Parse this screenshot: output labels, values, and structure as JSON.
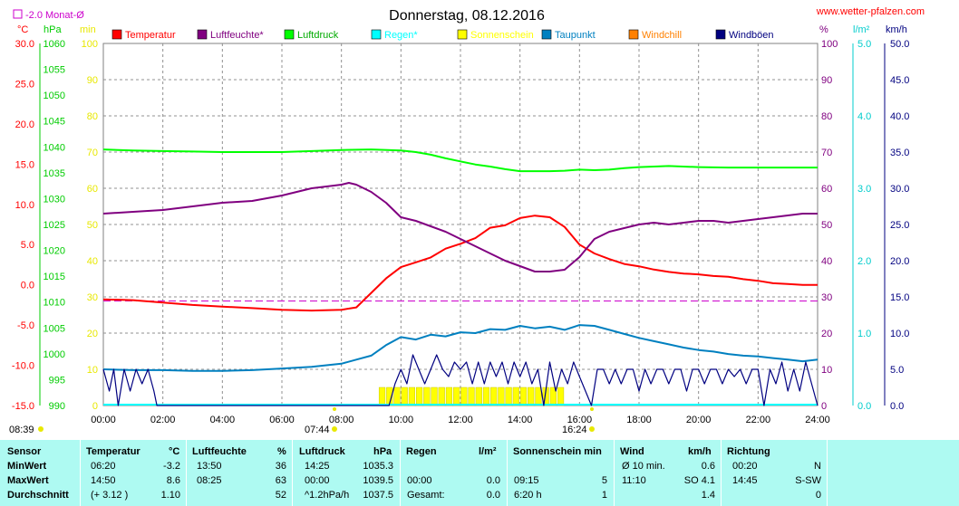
{
  "chart_data": {
    "type": "line",
    "title": "Donnerstag, 08.12.2016",
    "site": "www.wetter-pfalzen.com",
    "monthly_avg_label": "-2.0 Monat-Ø",
    "x_ticks": [
      "00:00",
      "02:00",
      "04:00",
      "06:00",
      "08:00",
      "10:00",
      "12:00",
      "14:00",
      "16:00",
      "18:00",
      "20:00",
      "22:00",
      "24:00"
    ],
    "sunrise": "07:44",
    "sunset": "16:24",
    "sun_marker_left": "08:39",
    "axes": {
      "temp": {
        "unit": "°C",
        "min": -15,
        "max": 30,
        "ticks": [
          "30.0",
          "25.0",
          "20.0",
          "15.0",
          "10.0",
          "5.0",
          "0.0",
          "-5.0",
          "-10.0",
          "-15.0"
        ],
        "color": "#ff0000"
      },
      "hpa": {
        "unit": "hPa",
        "min": 990,
        "max": 1060,
        "ticks": [
          "1060",
          "1055",
          "1050",
          "1045",
          "1040",
          "1035",
          "1030",
          "1025",
          "1020",
          "1015",
          "1010",
          "1005",
          "1000",
          "995",
          "990"
        ],
        "color": "#00cc00"
      },
      "min": {
        "unit": "min",
        "min": 0,
        "max": 100,
        "ticks": [
          "100",
          "90",
          "80",
          "70",
          "60",
          "50",
          "40",
          "30",
          "20",
          "10",
          "0"
        ],
        "color": "#e8e800"
      },
      "pct": {
        "unit": "%",
        "min": 0,
        "max": 100,
        "ticks": [
          "100",
          "90",
          "80",
          "70",
          "60",
          "50",
          "40",
          "30",
          "20",
          "10",
          "0"
        ],
        "color": "#800080"
      },
      "rain": {
        "unit": "l/m²",
        "min": 0,
        "max": 5,
        "ticks": [
          "5.0",
          "4.0",
          "3.0",
          "2.0",
          "1.0",
          "0.0"
        ],
        "color": "#00cccc"
      },
      "wind": {
        "unit": "km/h",
        "min": 0,
        "max": 50,
        "ticks": [
          "50.0",
          "45.0",
          "40.0",
          "35.0",
          "30.0",
          "25.0",
          "20.0",
          "15.0",
          "10.0",
          "5.0",
          "0.0"
        ],
        "color": "#000080"
      }
    },
    "legend": [
      {
        "name": "Temperatur",
        "color": "#ff0000"
      },
      {
        "name": "Luftfeuchte*",
        "color": "#800080"
      },
      {
        "name": "Luftdruck",
        "color": "#00ff00"
      },
      {
        "name": "Regen*",
        "color": "#00ffff"
      },
      {
        "name": "Sonnenschein",
        "color": "#ffff00"
      },
      {
        "name": "Taupunkt",
        "color": "#0080c0"
      },
      {
        "name": "Windchill",
        "color": "#ff8000"
      },
      {
        "name": "Windböen",
        "color": "#000080"
      }
    ],
    "monthly_avg_temp": -2.0,
    "series": [
      {
        "name": "Temperatur",
        "axis": "temp",
        "color": "#ff0000",
        "points": [
          [
            0,
            -1.8
          ],
          [
            1,
            -1.9
          ],
          [
            2,
            -2.2
          ],
          [
            3,
            -2.5
          ],
          [
            4,
            -2.7
          ],
          [
            5,
            -2.9
          ],
          [
            6,
            -3.1
          ],
          [
            7,
            -3.2
          ],
          [
            8,
            -3.1
          ],
          [
            8.5,
            -2.8
          ],
          [
            9,
            -1.0
          ],
          [
            9.5,
            0.8
          ],
          [
            10,
            2.2
          ],
          [
            10.5,
            2.8
          ],
          [
            11,
            3.4
          ],
          [
            11.5,
            4.5
          ],
          [
            12,
            5.1
          ],
          [
            12.5,
            5.8
          ],
          [
            13,
            7.1
          ],
          [
            13.5,
            7.4
          ],
          [
            14,
            8.3
          ],
          [
            14.5,
            8.6
          ],
          [
            15,
            8.4
          ],
          [
            15.5,
            7.2
          ],
          [
            16,
            5.0
          ],
          [
            16.5,
            3.9
          ],
          [
            17,
            3.2
          ],
          [
            17.5,
            2.6
          ],
          [
            18,
            2.3
          ],
          [
            18.5,
            1.9
          ],
          [
            19,
            1.6
          ],
          [
            19.5,
            1.4
          ],
          [
            20,
            1.3
          ],
          [
            20.5,
            1.1
          ],
          [
            21,
            1.0
          ],
          [
            21.5,
            0.7
          ],
          [
            22,
            0.5
          ],
          [
            22.5,
            0.2
          ],
          [
            23,
            0.1
          ],
          [
            23.5,
            0.0
          ],
          [
            24,
            0.0
          ]
        ]
      },
      {
        "name": "Luftfeuchte*",
        "axis": "pct",
        "color": "#800080",
        "points": [
          [
            0,
            53
          ],
          [
            1,
            53.5
          ],
          [
            2,
            54
          ],
          [
            3,
            55
          ],
          [
            4,
            56
          ],
          [
            5,
            56.5
          ],
          [
            6,
            58
          ],
          [
            6.5,
            59
          ],
          [
            7,
            60
          ],
          [
            7.5,
            60.5
          ],
          [
            8,
            61
          ],
          [
            8.25,
            61.5
          ],
          [
            8.5,
            61
          ],
          [
            9,
            59
          ],
          [
            9.5,
            56
          ],
          [
            10,
            52
          ],
          [
            10.5,
            51
          ],
          [
            11,
            49.5
          ],
          [
            11.5,
            48
          ],
          [
            12,
            46
          ],
          [
            12.5,
            44
          ],
          [
            13,
            42
          ],
          [
            13.5,
            40
          ],
          [
            14,
            38.5
          ],
          [
            14.5,
            37
          ],
          [
            15,
            37
          ],
          [
            15.5,
            37.5
          ],
          [
            16,
            41
          ],
          [
            16.5,
            46
          ],
          [
            17,
            48
          ],
          [
            17.5,
            49
          ],
          [
            18,
            50
          ],
          [
            18.5,
            50.5
          ],
          [
            19,
            50
          ],
          [
            19.5,
            50.5
          ],
          [
            20,
            51
          ],
          [
            20.5,
            51
          ],
          [
            21,
            50.5
          ],
          [
            21.5,
            51
          ],
          [
            22,
            51.5
          ],
          [
            22.5,
            52
          ],
          [
            23,
            52.5
          ],
          [
            23.5,
            53
          ],
          [
            24,
            53
          ]
        ]
      },
      {
        "name": "Luftdruck",
        "axis": "hpa",
        "color": "#00ff00",
        "points": [
          [
            0,
            1039.5
          ],
          [
            1,
            1039.3
          ],
          [
            2,
            1039.2
          ],
          [
            3,
            1039.1
          ],
          [
            4,
            1039.0
          ],
          [
            5,
            1039.0
          ],
          [
            6,
            1039.0
          ],
          [
            7,
            1039.2
          ],
          [
            8,
            1039.4
          ],
          [
            9,
            1039.5
          ],
          [
            10,
            1039.3
          ],
          [
            10.5,
            1039.0
          ],
          [
            11,
            1038.5
          ],
          [
            11.5,
            1037.8
          ],
          [
            12,
            1037.2
          ],
          [
            12.5,
            1036.6
          ],
          [
            13,
            1036.2
          ],
          [
            13.5,
            1035.7
          ],
          [
            14,
            1035.3
          ],
          [
            14.5,
            1035.3
          ],
          [
            15,
            1035.3
          ],
          [
            15.5,
            1035.4
          ],
          [
            16,
            1035.6
          ],
          [
            16.5,
            1035.5
          ],
          [
            17,
            1035.6
          ],
          [
            17.5,
            1035.9
          ],
          [
            18,
            1036.1
          ],
          [
            19,
            1036.3
          ],
          [
            20,
            1036.1
          ],
          [
            21,
            1036.0
          ],
          [
            22,
            1036.0
          ],
          [
            23,
            1036.0
          ],
          [
            24,
            1036.0
          ]
        ]
      },
      {
        "name": "Taupunkt",
        "axis": "temp",
        "color": "#0080c0",
        "points": [
          [
            0,
            -10.5
          ],
          [
            1,
            -10.6
          ],
          [
            2,
            -10.6
          ],
          [
            3,
            -10.7
          ],
          [
            4,
            -10.7
          ],
          [
            5,
            -10.6
          ],
          [
            6,
            -10.4
          ],
          [
            7,
            -10.2
          ],
          [
            8,
            -9.8
          ],
          [
            8.5,
            -9.3
          ],
          [
            9,
            -8.8
          ],
          [
            9.5,
            -7.5
          ],
          [
            10,
            -6.5
          ],
          [
            10.5,
            -6.8
          ],
          [
            11,
            -6.2
          ],
          [
            11.5,
            -6.4
          ],
          [
            12,
            -5.9
          ],
          [
            12.5,
            -6.0
          ],
          [
            13,
            -5.5
          ],
          [
            13.5,
            -5.6
          ],
          [
            14,
            -5.1
          ],
          [
            14.5,
            -5.4
          ],
          [
            15,
            -5.2
          ],
          [
            15.5,
            -5.6
          ],
          [
            16,
            -5.0
          ],
          [
            16.5,
            -5.1
          ],
          [
            17,
            -5.6
          ],
          [
            17.5,
            -6.1
          ],
          [
            18,
            -6.6
          ],
          [
            18.5,
            -7.0
          ],
          [
            19,
            -7.4
          ],
          [
            19.5,
            -7.8
          ],
          [
            20,
            -8.1
          ],
          [
            20.5,
            -8.3
          ],
          [
            21,
            -8.6
          ],
          [
            21.5,
            -8.8
          ],
          [
            22,
            -8.9
          ],
          [
            22.5,
            -9.1
          ],
          [
            23,
            -9.3
          ],
          [
            23.5,
            -9.5
          ],
          [
            24,
            -9.3
          ]
        ]
      },
      {
        "name": "Windböen",
        "axis": "wind",
        "color": "#000080",
        "points": [
          [
            0,
            5
          ],
          [
            0.2,
            2
          ],
          [
            0.35,
            5
          ],
          [
            0.5,
            0
          ],
          [
            0.7,
            5
          ],
          [
            0.9,
            2
          ],
          [
            1.1,
            5
          ],
          [
            1.3,
            3
          ],
          [
            1.5,
            5
          ],
          [
            1.7,
            2
          ],
          [
            1.8,
            0
          ],
          [
            9.6,
            0
          ],
          [
            9.8,
            3
          ],
          [
            10,
            5
          ],
          [
            10.2,
            3
          ],
          [
            10.4,
            7
          ],
          [
            10.6,
            5
          ],
          [
            10.8,
            3
          ],
          [
            11,
            5
          ],
          [
            11.2,
            7
          ],
          [
            11.4,
            5
          ],
          [
            11.6,
            4
          ],
          [
            11.8,
            6
          ],
          [
            12,
            5
          ],
          [
            12.2,
            6
          ],
          [
            12.4,
            3
          ],
          [
            12.6,
            6
          ],
          [
            12.8,
            3
          ],
          [
            13,
            6
          ],
          [
            13.2,
            4
          ],
          [
            13.4,
            6
          ],
          [
            13.6,
            3
          ],
          [
            13.8,
            6
          ],
          [
            14,
            4
          ],
          [
            14.2,
            6
          ],
          [
            14.4,
            3
          ],
          [
            14.6,
            5
          ],
          [
            14.8,
            0
          ],
          [
            15,
            6
          ],
          [
            15.2,
            2
          ],
          [
            15.4,
            5
          ],
          [
            15.6,
            3
          ],
          [
            15.8,
            6
          ],
          [
            16,
            4
          ],
          [
            16.2,
            2
          ],
          [
            16.4,
            0
          ],
          [
            16.6,
            5
          ],
          [
            16.8,
            5
          ],
          [
            17,
            3
          ],
          [
            17.2,
            5
          ],
          [
            17.4,
            3
          ],
          [
            17.6,
            5
          ],
          [
            17.8,
            5
          ],
          [
            18,
            2
          ],
          [
            18.2,
            5
          ],
          [
            18.4,
            3
          ],
          [
            18.6,
            5
          ],
          [
            18.8,
            5
          ],
          [
            19,
            3
          ],
          [
            19.2,
            5
          ],
          [
            19.4,
            5
          ],
          [
            19.6,
            2
          ],
          [
            19.8,
            5
          ],
          [
            20,
            5
          ],
          [
            20.2,
            3
          ],
          [
            20.4,
            5
          ],
          [
            20.6,
            5
          ],
          [
            20.8,
            3
          ],
          [
            21,
            5
          ],
          [
            21.2,
            4
          ],
          [
            21.4,
            5
          ],
          [
            21.6,
            3
          ],
          [
            21.8,
            5
          ],
          [
            22,
            5
          ],
          [
            22.2,
            0
          ],
          [
            22.4,
            5
          ],
          [
            22.6,
            3
          ],
          [
            22.8,
            6
          ],
          [
            23,
            2
          ],
          [
            23.2,
            5
          ],
          [
            23.4,
            2
          ],
          [
            23.6,
            6
          ],
          [
            23.8,
            3
          ],
          [
            24,
            0
          ]
        ]
      }
    ],
    "sunshine_blocks": {
      "start": 9.25,
      "end": 15.5,
      "value": 5
    }
  },
  "table": {
    "header": {
      "sensor": "Sensor",
      "temperatur": "Temperatur",
      "temp_unit": "°C",
      "luftfeuchte": "Luftfeuchte",
      "lf_unit": "%",
      "luftdruck": "Luftdruck",
      "ld_unit": "hPa",
      "regen": "Regen",
      "regen_unit": "l/m²",
      "sonne": "Sonnenschein min",
      "wind": "Wind",
      "wind_unit": "km/h",
      "richtung": "Richtung"
    },
    "rows": [
      {
        "label": "MinWert",
        "t_time": "06:20",
        "t_val": "-3.2",
        "lf_time": "13:50",
        "lf_val": "36",
        "ld_time": "14:25",
        "ld_val": "1035.3",
        "r_time": "",
        "r_val": "",
        "s_time": "",
        "s_val": "",
        "w_time": "Ø 10 min.",
        "w_val": "0.6",
        "d_time": "00:20",
        "d_val": "N"
      },
      {
        "label": "MaxWert",
        "t_time": "14:50",
        "t_val": "8.6",
        "lf_time": "08:25",
        "lf_val": "63",
        "ld_time": "00:00",
        "ld_val": "1039.5",
        "r_time": "00:00",
        "r_val": "0.0",
        "s_time": "09:15",
        "s_val": "5",
        "w_time": "11:10",
        "w_val": "SO 4.1",
        "d_time": "14:45",
        "d_val": "S-SW"
      },
      {
        "label": "Durchschnitt",
        "t_time": "(+ 3.12 )",
        "t_val": "1.10",
        "lf_time": "",
        "lf_val": "52",
        "ld_time": "^1.2hPa/h",
        "ld_val": "1037.5",
        "r_time": "Gesamt:",
        "r_val": "0.0",
        "s_time": "6:20 h",
        "s_val": "1",
        "w_time": "",
        "w_val": "1.4",
        "d_time": "",
        "d_val": "0"
      }
    ]
  }
}
